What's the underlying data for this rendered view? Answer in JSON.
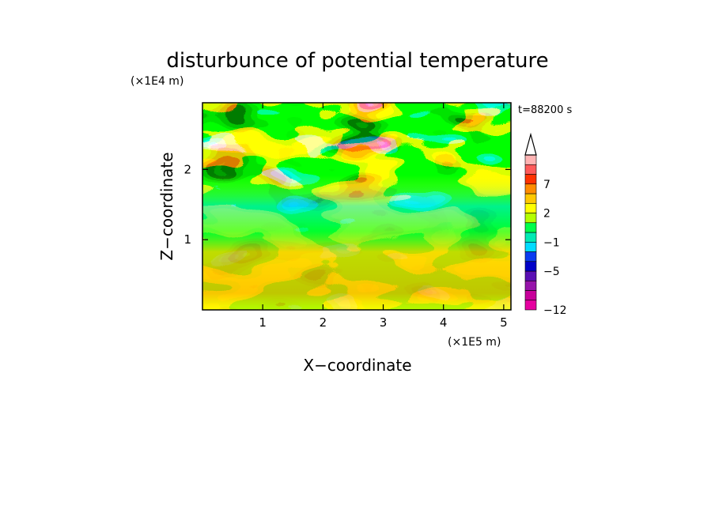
{
  "chart_data": {
    "type": "heatmap",
    "title": "disturbunce of potential temperature",
    "xlabel": "X−coordinate",
    "ylabel": "Z−coordinate",
    "x_unit": "(×1E5 m)",
    "y_unit": "(×1E4 m)",
    "time_label": "t=88200 s",
    "xlim": [
      0,
      5.12
    ],
    "ylim": [
      0,
      2.95
    ],
    "x_ticks": [
      1,
      2,
      3,
      4,
      5
    ],
    "y_ticks": [
      1,
      2
    ],
    "grid": false,
    "legend": "right colorbar",
    "colorbar": {
      "levels": [
        -12,
        -10,
        -8,
        -7,
        -5,
        -4,
        -3,
        -1,
        0,
        1,
        2,
        3,
        5,
        7,
        8,
        9
      ],
      "tick_labels": [
        {
          "value": 7,
          "label": "7"
        },
        {
          "value": 2,
          "label": "2"
        },
        {
          "value": -1,
          "label": "−1"
        },
        {
          "value": -5,
          "label": "−5"
        },
        {
          "value": -12,
          "label": "−12"
        }
      ],
      "colors": [
        "#e600a0",
        "#c8009a",
        "#9614aa",
        "#5a0fb4",
        "#0000c8",
        "#0a3cf0",
        "#00dcff",
        "#00ebb4",
        "#00ff4b",
        "#b4ff00",
        "#ffff00",
        "#ffc800",
        "#ff8c00",
        "#ff3200",
        "#ff5a5a",
        "#ffb4b4"
      ],
      "extend": "max"
    }
  }
}
